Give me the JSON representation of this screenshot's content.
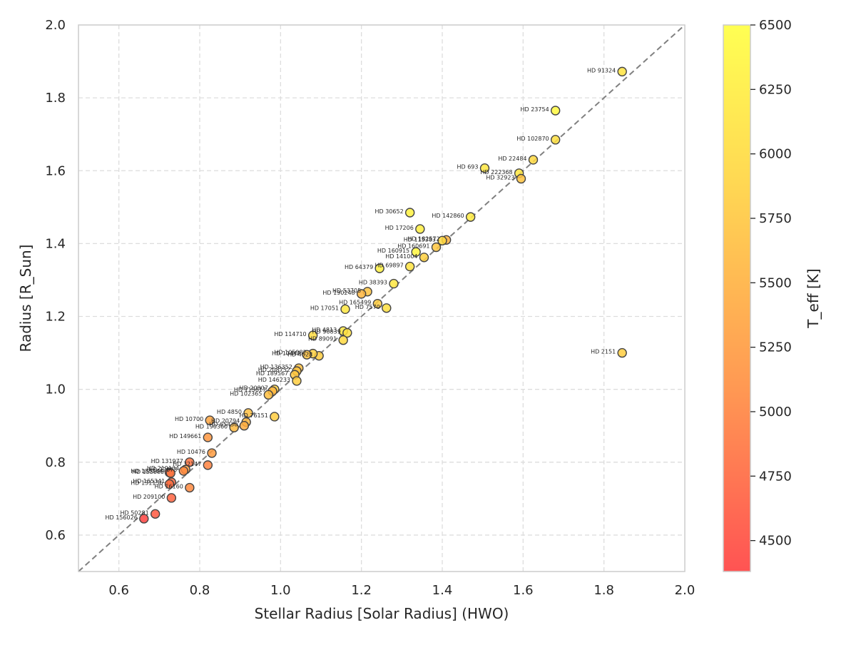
{
  "chart_data": {
    "type": "scatter",
    "title": "",
    "xlabel": "Stellar Radius [Solar Radius] (HWO)",
    "ylabel": "Radius [R_Sun]",
    "xlim": [
      0.5,
      2.0
    ],
    "ylim": [
      0.5,
      2.0
    ],
    "xticks": [
      "0.6",
      "0.8",
      "1.0",
      "1.2",
      "1.4",
      "1.6",
      "1.8",
      "2.0"
    ],
    "yticks": [
      "0.6",
      "0.8",
      "1.0",
      "1.2",
      "1.4",
      "1.6",
      "1.8",
      "2.0"
    ],
    "grid": true,
    "reference_line": "y = x (dashed gray)",
    "colorbar": {
      "label": "T_eff [K]",
      "range": [
        4380,
        6500
      ],
      "ticks": [
        "4500",
        "4750",
        "5000",
        "5250",
        "5500",
        "5750",
        "6000",
        "6250",
        "6500"
      ],
      "colormap": [
        "#ff4040",
        "#ff8c40",
        "#ffd540",
        "#ffff40"
      ]
    },
    "points": [
      {
        "name": "HD 91324",
        "x": 1.845,
        "y": 1.872,
        "teff": 6100
      },
      {
        "name": "HD 23754",
        "x": 1.68,
        "y": 1.765,
        "teff": 6400
      },
      {
        "name": "HD 102870",
        "x": 1.68,
        "y": 1.685,
        "teff": 6050
      },
      {
        "name": "HD 22484",
        "x": 1.625,
        "y": 1.63,
        "teff": 5950
      },
      {
        "name": "HD 693",
        "x": 1.505,
        "y": 1.607,
        "teff": 6150
      },
      {
        "name": "HD 222368",
        "x": 1.59,
        "y": 1.593,
        "teff": 6150
      },
      {
        "name": "HD 32923",
        "x": 1.595,
        "y": 1.578,
        "teff": 5700
      },
      {
        "name": "HD 30652",
        "x": 1.32,
        "y": 1.485,
        "teff": 6300
      },
      {
        "name": "HD 142860",
        "x": 1.47,
        "y": 1.473,
        "teff": 6200
      },
      {
        "name": "HD 17206",
        "x": 1.345,
        "y": 1.44,
        "teff": 6250
      },
      {
        "name": "HD 182572",
        "x": 1.41,
        "y": 1.41,
        "teff": 5500
      },
      {
        "name": "HD 115383",
        "x": 1.4,
        "y": 1.408,
        "teff": 5950
      },
      {
        "name": "HD 160691",
        "x": 1.385,
        "y": 1.39,
        "teff": 5750
      },
      {
        "name": "HD 160915",
        "x": 1.335,
        "y": 1.377,
        "teff": 6350
      },
      {
        "name": "HD 141004",
        "x": 1.355,
        "y": 1.362,
        "teff": 5850
      },
      {
        "name": "HD 69897",
        "x": 1.32,
        "y": 1.337,
        "teff": 6100
      },
      {
        "name": "HD 64379",
        "x": 1.245,
        "y": 1.332,
        "teff": 6300
      },
      {
        "name": "HD 38393",
        "x": 1.28,
        "y": 1.29,
        "teff": 6150
      },
      {
        "name": "HD 53705",
        "x": 1.215,
        "y": 1.268,
        "teff": 5700
      },
      {
        "name": "HD 190248",
        "x": 1.2,
        "y": 1.262,
        "teff": 5550
      },
      {
        "name": "HD 165499",
        "x": 1.24,
        "y": 1.235,
        "teff": 5800
      },
      {
        "name": "HD 7570",
        "x": 1.262,
        "y": 1.223,
        "teff": 6050
      },
      {
        "name": "HD 17051",
        "x": 1.16,
        "y": 1.22,
        "teff": 6150
      },
      {
        "name": "HD 4813",
        "x": 1.155,
        "y": 1.16,
        "teff": 6150
      },
      {
        "name": "HD 90839",
        "x": 1.165,
        "y": 1.155,
        "teff": 6050
      },
      {
        "name": "HD 114710",
        "x": 1.08,
        "y": 1.148,
        "teff": 6000
      },
      {
        "name": "HD 89091",
        "x": 1.155,
        "y": 1.135,
        "teff": 5950
      },
      {
        "name": "HD 4628",
        "x": 1.095,
        "y": 1.092,
        "teff": 5800
      },
      {
        "name": "HD 105982",
        "x": 1.08,
        "y": 1.098,
        "teff": 5850
      },
      {
        "name": "HD 10442",
        "x": 1.065,
        "y": 1.095,
        "teff": 5700
      },
      {
        "name": "HD 136352",
        "x": 1.045,
        "y": 1.058,
        "teff": 5650
      },
      {
        "name": "HD 208752",
        "x": 1.04,
        "y": 1.05,
        "teff": 5700
      },
      {
        "name": "HD 189567",
        "x": 1.035,
        "y": 1.04,
        "teff": 5750
      },
      {
        "name": "HD 146233",
        "x": 1.04,
        "y": 1.023,
        "teff": 5800
      },
      {
        "name": "HD 20807",
        "x": 0.985,
        "y": 1.0,
        "teff": 5850
      },
      {
        "name": "HD 115617",
        "x": 0.98,
        "y": 0.995,
        "teff": 5550
      },
      {
        "name": "HD 102365",
        "x": 0.97,
        "y": 0.985,
        "teff": 5650
      },
      {
        "name": "HD 4850",
        "x": 0.92,
        "y": 0.935,
        "teff": 5650
      },
      {
        "name": "HD 76151",
        "x": 0.985,
        "y": 0.925,
        "teff": 5800
      },
      {
        "name": "HD 10700",
        "x": 0.825,
        "y": 0.915,
        "teff": 5350
      },
      {
        "name": "HD 20794",
        "x": 0.915,
        "y": 0.91,
        "teff": 5550
      },
      {
        "name": "HD 190360",
        "x": 0.885,
        "y": 0.895,
        "teff": 5600
      },
      {
        "name": "HD 65430",
        "x": 0.91,
        "y": 0.9,
        "teff": 5450
      },
      {
        "name": "HD 149661",
        "x": 0.82,
        "y": 0.868,
        "teff": 5200
      },
      {
        "name": "HD 10476",
        "x": 0.83,
        "y": 0.825,
        "teff": 5250
      },
      {
        "name": "HD 32147",
        "x": 0.82,
        "y": 0.792,
        "teff": 5000
      },
      {
        "name": "HD 131977",
        "x": 0.775,
        "y": 0.8,
        "teff": 4850
      },
      {
        "name": "HD 219134",
        "x": 0.765,
        "y": 0.78,
        "teff": 5300
      },
      {
        "name": "HD 72673",
        "x": 0.76,
        "y": 0.776,
        "teff": 5050
      },
      {
        "name": "HD 185144",
        "x": 0.725,
        "y": 0.772,
        "teff": 4650
      },
      {
        "name": "HD 155885",
        "x": 0.728,
        "y": 0.77,
        "teff": 4900
      },
      {
        "name": "HD 165341",
        "x": 0.73,
        "y": 0.745,
        "teff": 4750
      },
      {
        "name": "HD 131156",
        "x": 0.725,
        "y": 0.74,
        "teff": 4800
      },
      {
        "name": "HD 16160",
        "x": 0.775,
        "y": 0.73,
        "teff": 5050
      },
      {
        "name": "HD 209100",
        "x": 0.73,
        "y": 0.702,
        "teff": 4700
      },
      {
        "name": "HD 50281",
        "x": 0.69,
        "y": 0.658,
        "teff": 4600
      },
      {
        "name": "HD 156026",
        "x": 0.662,
        "y": 0.645,
        "teff": 4400
      },
      {
        "name": "HD 2151",
        "x": 1.845,
        "y": 1.1,
        "teff": 5800
      }
    ]
  }
}
